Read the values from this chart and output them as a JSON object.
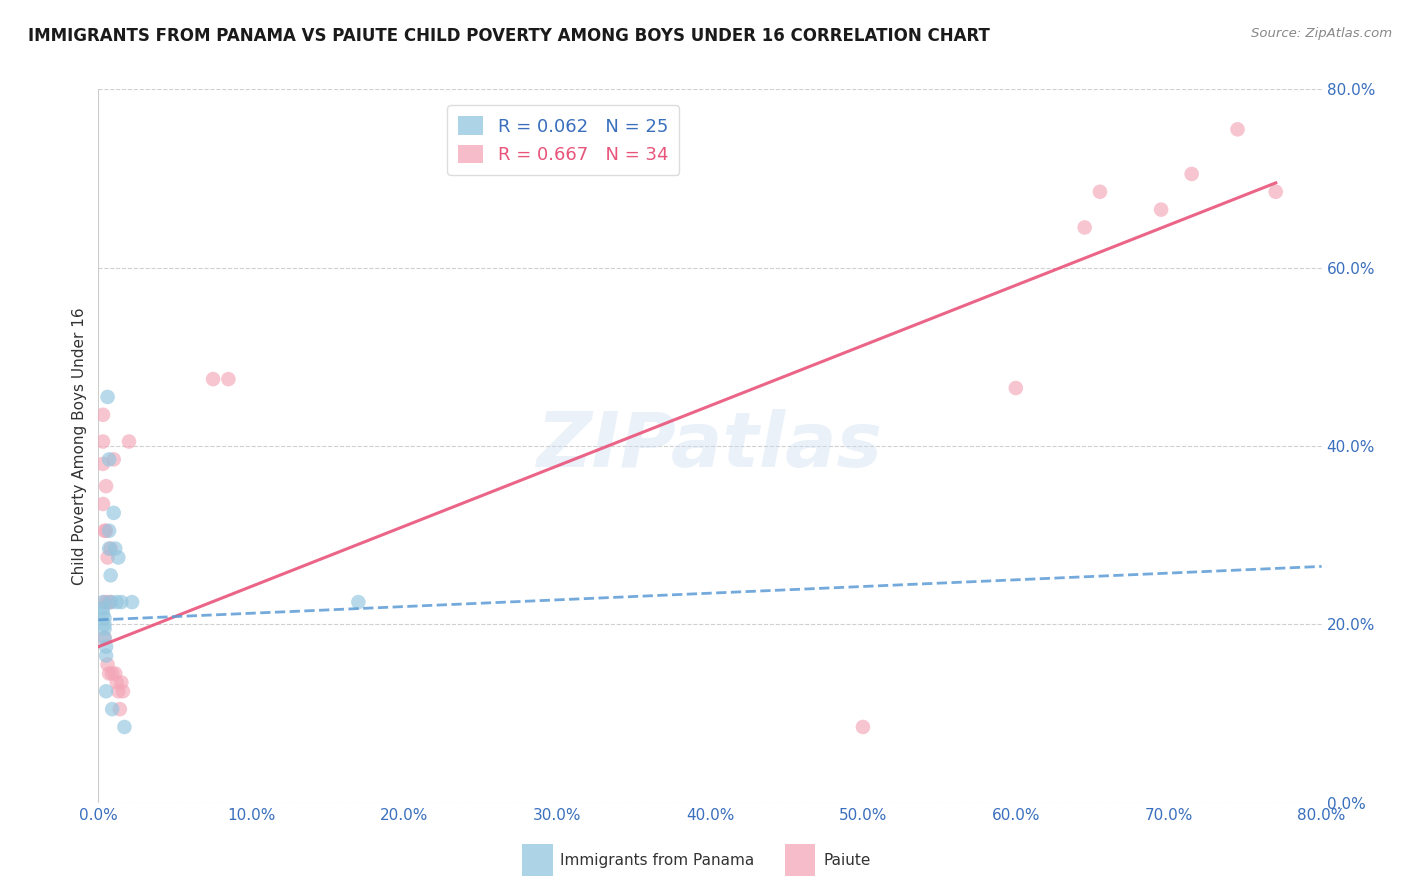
{
  "title": "IMMIGRANTS FROM PANAMA VS PAIUTE CHILD POVERTY AMONG BOYS UNDER 16 CORRELATION CHART",
  "source": "Source: ZipAtlas.com",
  "ylabel": "Child Poverty Among Boys Under 16",
  "xlabel_blue": "Immigrants from Panama",
  "xlabel_pink": "Paiute",
  "legend_blue_r": "R = 0.062",
  "legend_blue_n": "N = 25",
  "legend_pink_r": "R = 0.667",
  "legend_pink_n": "N = 34",
  "watermark": "ZIPatlas",
  "xlim": [
    0.0,
    0.8
  ],
  "ylim": [
    0.0,
    0.8
  ],
  "xticks": [
    0.0,
    0.1,
    0.2,
    0.3,
    0.4,
    0.5,
    0.6,
    0.7,
    0.8
  ],
  "yticks": [
    0.0,
    0.2,
    0.4,
    0.6,
    0.8
  ],
  "blue_color": "#92c5de",
  "pink_color": "#f4a6b8",
  "blue_line_color": "#5b9bd5",
  "pink_line_color": "#e8547a",
  "axis_color": "#3a6fbd",
  "background": "#ffffff",
  "blue_scatter_x": [
    0.003,
    0.003,
    0.003,
    0.004,
    0.004,
    0.004,
    0.004,
    0.005,
    0.005,
    0.005,
    0.006,
    0.007,
    0.007,
    0.007,
    0.008,
    0.008,
    0.009,
    0.01,
    0.011,
    0.012,
    0.013,
    0.015,
    0.017,
    0.022,
    0.17
  ],
  "blue_scatter_y": [
    0.225,
    0.218,
    0.212,
    0.207,
    0.2,
    0.195,
    0.185,
    0.175,
    0.165,
    0.125,
    0.455,
    0.385,
    0.305,
    0.285,
    0.255,
    0.225,
    0.105,
    0.325,
    0.285,
    0.225,
    0.275,
    0.225,
    0.085,
    0.225,
    0.225
  ],
  "pink_scatter_x": [
    0.003,
    0.003,
    0.003,
    0.003,
    0.004,
    0.004,
    0.004,
    0.005,
    0.005,
    0.006,
    0.006,
    0.006,
    0.007,
    0.008,
    0.008,
    0.009,
    0.01,
    0.011,
    0.012,
    0.013,
    0.014,
    0.015,
    0.016,
    0.02,
    0.075,
    0.085,
    0.5,
    0.6,
    0.645,
    0.655,
    0.695,
    0.715,
    0.745,
    0.77
  ],
  "pink_scatter_y": [
    0.435,
    0.405,
    0.38,
    0.335,
    0.305,
    0.225,
    0.185,
    0.355,
    0.305,
    0.275,
    0.225,
    0.155,
    0.145,
    0.285,
    0.225,
    0.145,
    0.385,
    0.145,
    0.135,
    0.125,
    0.105,
    0.135,
    0.125,
    0.405,
    0.475,
    0.475,
    0.085,
    0.465,
    0.645,
    0.685,
    0.665,
    0.705,
    0.755,
    0.685
  ],
  "blue_trendline_x": [
    0.0,
    0.8
  ],
  "blue_trendline_y": [
    0.205,
    0.265
  ],
  "pink_trendline_x": [
    0.0,
    0.77
  ],
  "pink_trendline_y": [
    0.175,
    0.695
  ]
}
